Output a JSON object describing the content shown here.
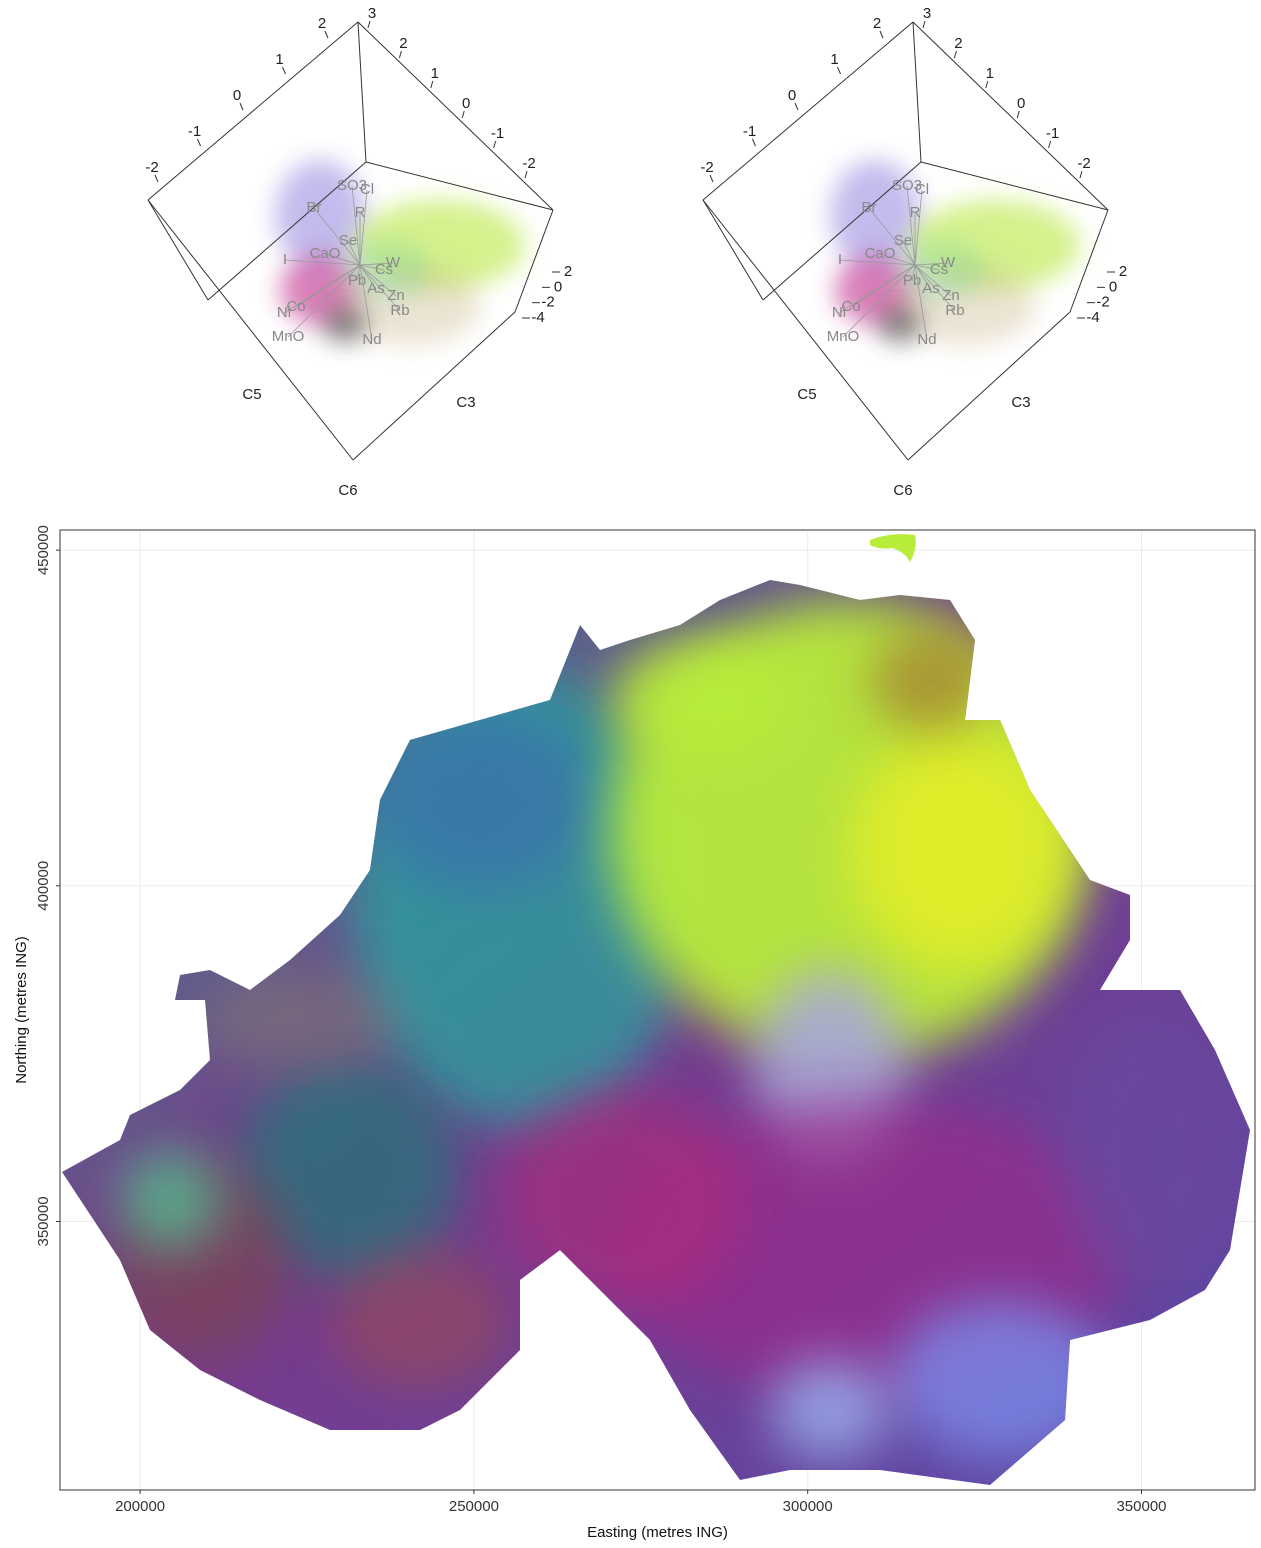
{
  "chart_data": [
    {
      "type": "biplot3d",
      "axis_labels": [
        "C5",
        "C3",
        "C6"
      ],
      "ticks_left": [
        -2,
        -1,
        0,
        1,
        2
      ],
      "ticks_top": [
        3,
        2,
        1,
        0,
        -1,
        -2
      ],
      "ticks_right": [
        2,
        0,
        -2,
        -4
      ],
      "variables": [
        "SO3",
        "Cl",
        "Br",
        "R",
        "Se",
        "CaO",
        "I",
        "W",
        "Cs",
        "Pb",
        "As",
        "Zn",
        "Rb",
        "Ni",
        "Co",
        "MnO",
        "Nd"
      ]
    },
    {
      "type": "biplot3d",
      "axis_labels": [
        "C5",
        "C3",
        "C6"
      ],
      "ticks_left": [
        -2,
        -1,
        0,
        1,
        2
      ],
      "ticks_top": [
        3,
        2,
        1,
        0,
        -1,
        -2
      ],
      "ticks_right": [
        2,
        0,
        -2,
        -4
      ],
      "variables": [
        "SO3",
        "Cl",
        "Br",
        "R",
        "Se",
        "CaO",
        "I",
        "W",
        "Cs",
        "Pb",
        "As",
        "Zn",
        "Rb",
        "Ni",
        "Co",
        "MnO",
        "Nd"
      ]
    },
    {
      "type": "map",
      "xlabel": "Easting (metres ING)",
      "ylabel": "Northing (metres ING)",
      "xlim": [
        188000,
        367000
      ],
      "ylim": [
        310000,
        453000
      ],
      "xticks": [
        200000,
        250000,
        300000,
        350000
      ],
      "yticks": [
        350000,
        400000,
        450000
      ],
      "grid": true
    }
  ]
}
